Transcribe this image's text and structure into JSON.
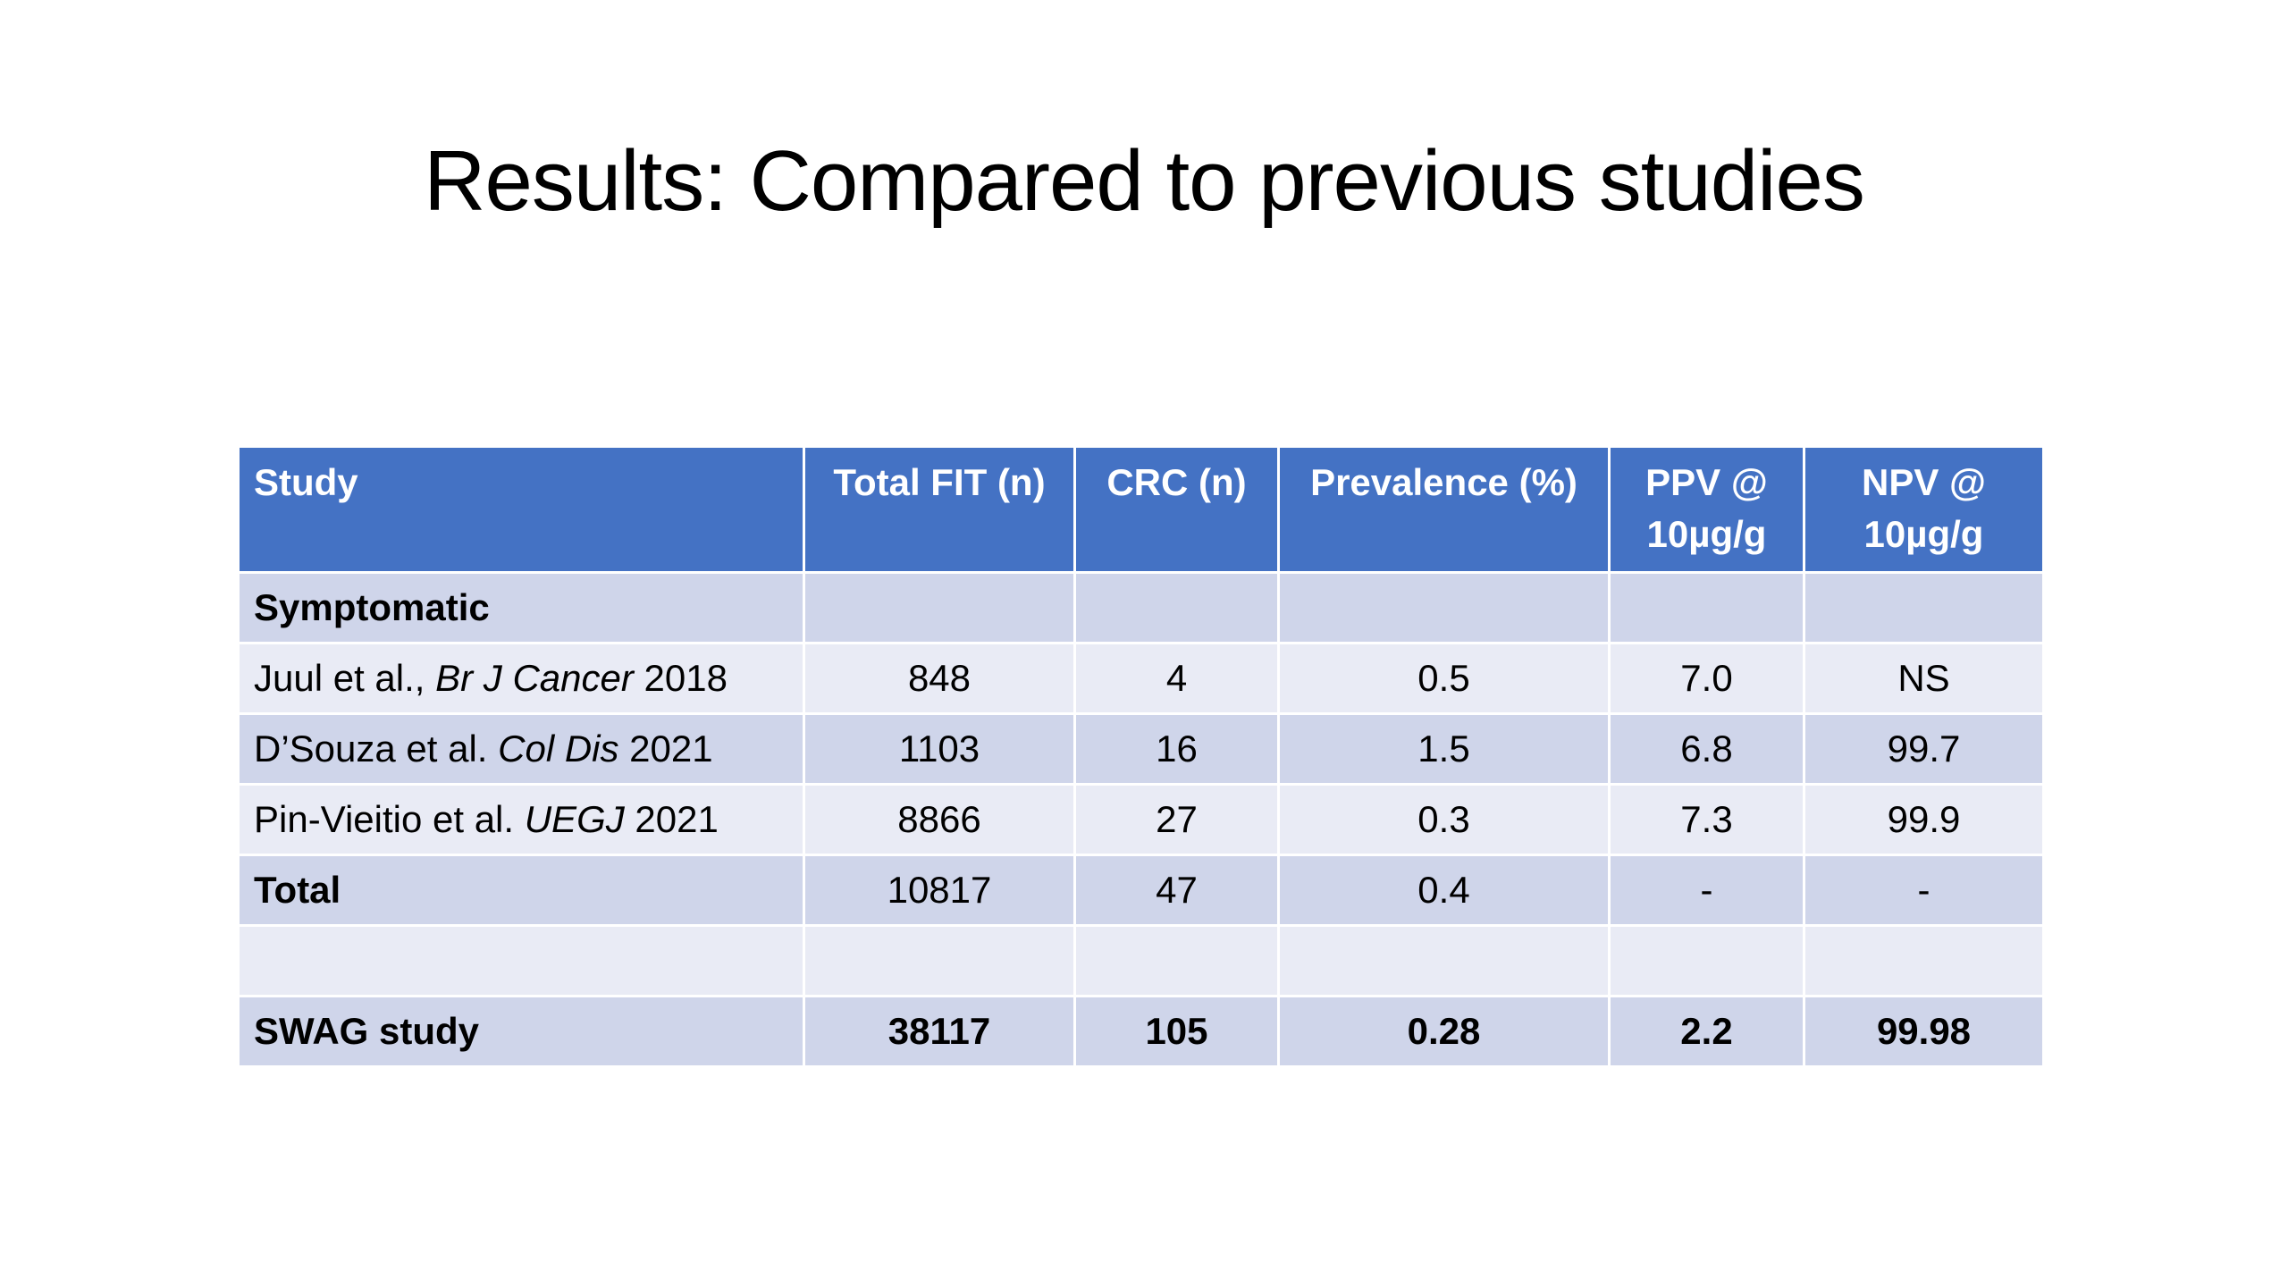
{
  "slide": {
    "title": "Results: Compared to previous studies"
  },
  "table": {
    "headers": {
      "study": "Study",
      "total_fit": "Total FIT (n)",
      "crc": "CRC (n)",
      "prevalence": "Prevalence (%)",
      "ppv": "PPV @ 10µg/g",
      "npv": "NPV @ 10µg/g"
    },
    "section_label": "Symptomatic",
    "rows": [
      {
        "authors": "Juul et al., ",
        "journal": "Br J Cancer",
        "year": " 2018",
        "total_fit": "848",
        "crc": "4",
        "prevalence": "0.5",
        "ppv": "7.0",
        "npv": "NS"
      },
      {
        "authors": "D’Souza et al. ",
        "journal": "Col Dis",
        "year": " 2021",
        "total_fit": "1103",
        "crc": "16",
        "prevalence": "1.5",
        "ppv": "6.8",
        "npv": "99.7"
      },
      {
        "authors": "Pin-Vieitio et al. ",
        "journal": "UEGJ",
        "year": " 2021",
        "total_fit": "8866",
        "crc": "27",
        "prevalence": "0.3",
        "ppv": "7.3",
        "npv": "99.9"
      }
    ],
    "total": {
      "label": "Total",
      "total_fit": "10817",
      "crc": "47",
      "prevalence": "0.4",
      "ppv": "-",
      "npv": "-"
    },
    "swag": {
      "label": "SWAG study",
      "total_fit": "38117",
      "crc": "105",
      "prevalence": "0.28",
      "ppv": "2.2",
      "npv": "99.98"
    }
  },
  "colors": {
    "header_bg": "#4472c4",
    "row_dark": "#cfd5ea",
    "row_light": "#e9ebf5"
  }
}
